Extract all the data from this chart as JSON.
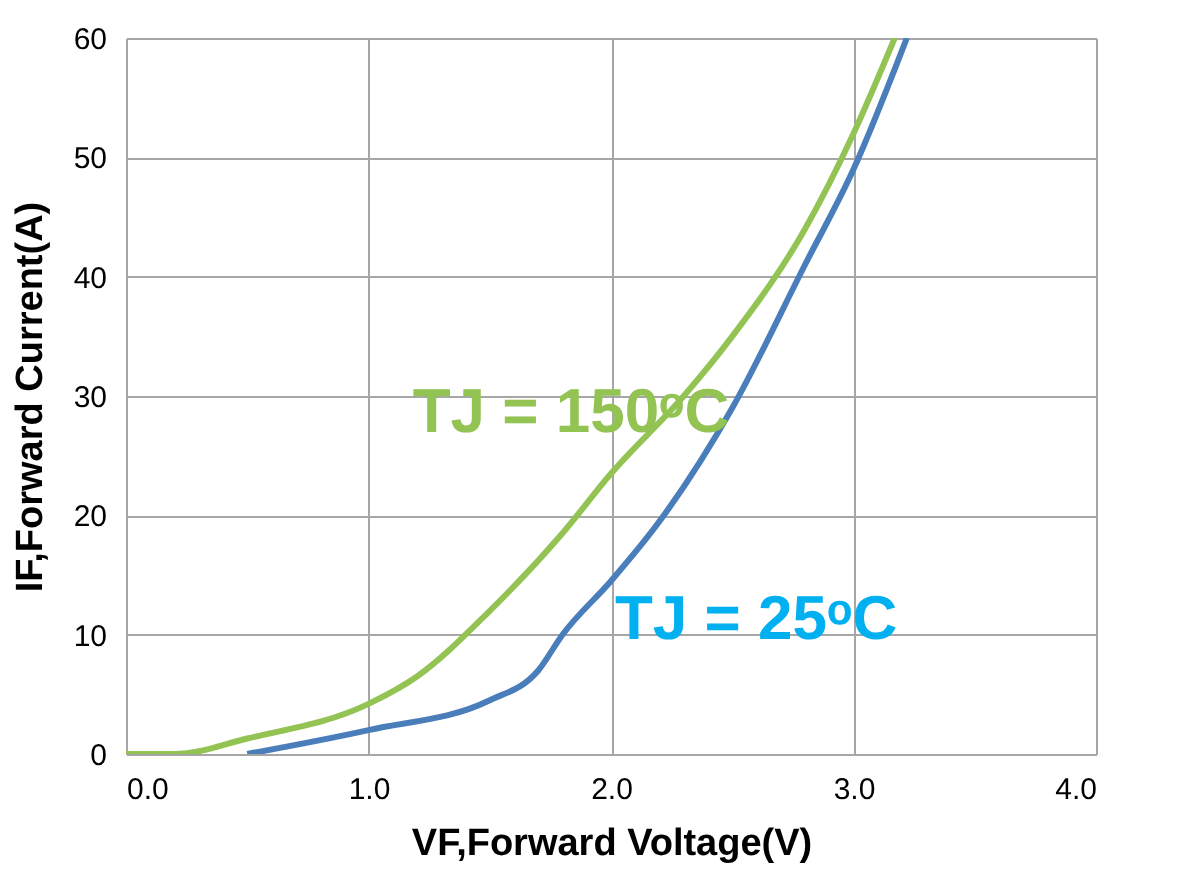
{
  "chart_data": {
    "type": "line",
    "xlabel": "VF,Forward Voltage(V)",
    "ylabel": "IF,Forward Current(A)",
    "xlim": [
      0,
      4
    ],
    "xticks": [
      {
        "value": 0,
        "label": "0.0"
      },
      {
        "value": 1,
        "label": "1.0"
      },
      {
        "value": 2,
        "label": "2.0"
      },
      {
        "value": 3,
        "label": "3.0"
      },
      {
        "value": 4,
        "label": "4.0"
      }
    ],
    "ylim": [
      0,
      60
    ],
    "yticks": [
      0,
      10,
      20,
      30,
      40,
      50,
      60
    ],
    "grid": true,
    "legend": false,
    "marker": "none",
    "line_style": "solid",
    "series": [
      {
        "name": "TJ = 150ᵒC",
        "color": "#92c353",
        "x": [
          0,
          0.2,
          0.5,
          1.0,
          1.2,
          1.5,
          1.8,
          2.0,
          2.3,
          2.5,
          2.8,
          3.0,
          3.17
        ],
        "values": [
          0,
          0,
          1.3,
          4.2,
          6.5,
          12,
          18.5,
          23.5,
          30,
          35,
          44,
          52,
          60
        ]
      },
      {
        "name": "TJ = 25ᵒC",
        "color": "#4a7ebb",
        "x": [
          0.5,
          1.0,
          1.5,
          1.7,
          1.8,
          2.0,
          2.2,
          2.5,
          2.8,
          3.0,
          3.22
        ],
        "values": [
          0,
          2,
          4.5,
          7,
          10,
          14.5,
          19.5,
          29,
          41,
          49,
          60
        ]
      }
    ]
  }
}
